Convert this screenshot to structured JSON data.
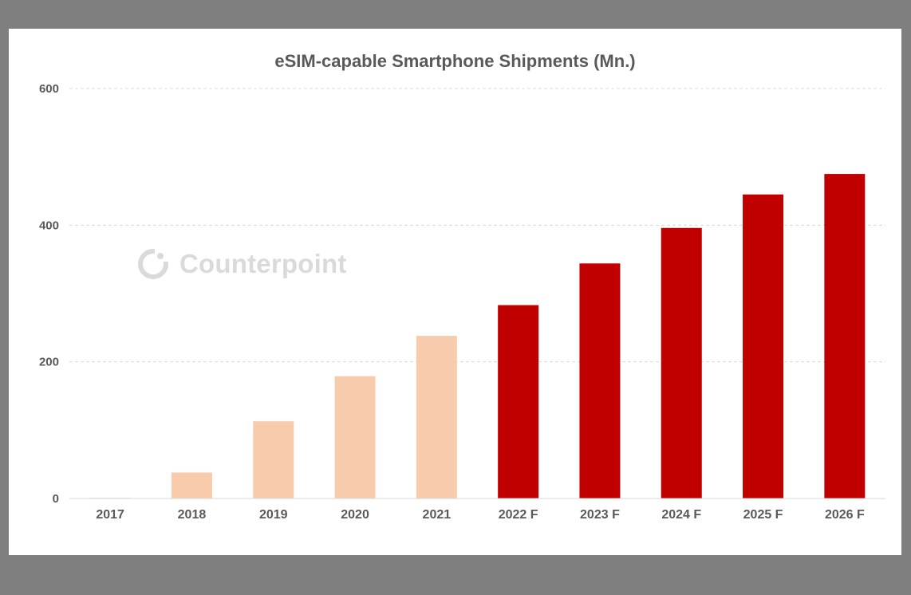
{
  "chart_data": {
    "type": "bar",
    "title": "eSIM-capable Smartphone Shipments (Mn.)",
    "xlabel": "",
    "ylabel": "",
    "ylim": [
      0,
      600
    ],
    "yticks": [
      0,
      200,
      400,
      600
    ],
    "grid": true,
    "categories": [
      "2017",
      "2018",
      "2019",
      "2020",
      "2021",
      "2022 F",
      "2023 F",
      "2024 F",
      "2025 F",
      "2026 F"
    ],
    "values": [
      1,
      38,
      113,
      179,
      238,
      283,
      344,
      396,
      445,
      475
    ],
    "series_colors": [
      "#f8cbad",
      "#f8cbad",
      "#f8cbad",
      "#f8cbad",
      "#f8cbad",
      "#c00000",
      "#c00000",
      "#c00000",
      "#c00000",
      "#c00000"
    ]
  },
  "watermark": {
    "text": "Counterpoint",
    "icon": "counterpoint-logo-icon"
  }
}
